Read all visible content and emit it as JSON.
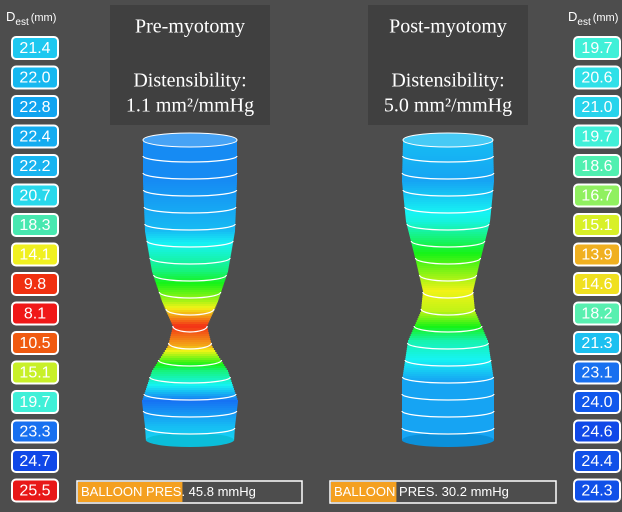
{
  "left_scale": {
    "header": "D",
    "subscript": "est",
    "unit": "(mm)",
    "values": [
      "21.4",
      "22.0",
      "22.8",
      "22.4",
      "22.2",
      "20.7",
      "18.3",
      "14.1",
      "9.8",
      "8.1",
      "10.5",
      "15.1",
      "19.7",
      "23.3",
      "24.7",
      "25.5"
    ],
    "colors": [
      "#1ec8f0",
      "#16b8f0",
      "#10a4f0",
      "#14acf0",
      "#18b4f0",
      "#28d8ec",
      "#48e8b0",
      "#f0f020",
      "#f03010",
      "#f01818",
      "#f05a10",
      "#c8f028",
      "#40f0d8",
      "#1870f0",
      "#1048e8",
      "#e81818"
    ]
  },
  "right_scale": {
    "header": "D",
    "subscript": "est",
    "unit": "(mm)",
    "values": [
      "19.7",
      "20.6",
      "21.0",
      "19.7",
      "18.6",
      "16.7",
      "15.1",
      "13.9",
      "14.6",
      "18.2",
      "21.3",
      "23.1",
      "24.0",
      "24.6",
      "24.4",
      "24.3"
    ],
    "colors": [
      "#40f0d8",
      "#30e0e8",
      "#28d4ec",
      "#40f0d8",
      "#50f0b0",
      "#90f060",
      "#d8f028",
      "#f0b020",
      "#f0e020",
      "#58f0b0",
      "#1cc0f0",
      "#1870f0",
      "#1058ec",
      "#1048e8",
      "#1050e8",
      "#1050e8"
    ]
  },
  "panels": [
    {
      "title": "Pre-myotomy",
      "label": "Distensibility:",
      "value": "1.1 mm²/mmHg",
      "pressure_highlight": "BALLOON PRES",
      "pressure_rest": ". 45.8 mmHg"
    },
    {
      "title": "Post-myotomy",
      "label": "Distensibility:",
      "value": "5.0 mm²/mmHg",
      "pressure_highlight": "BALLOON",
      "pressure_rest": " PRES. 30.2 mmHg"
    }
  ]
}
